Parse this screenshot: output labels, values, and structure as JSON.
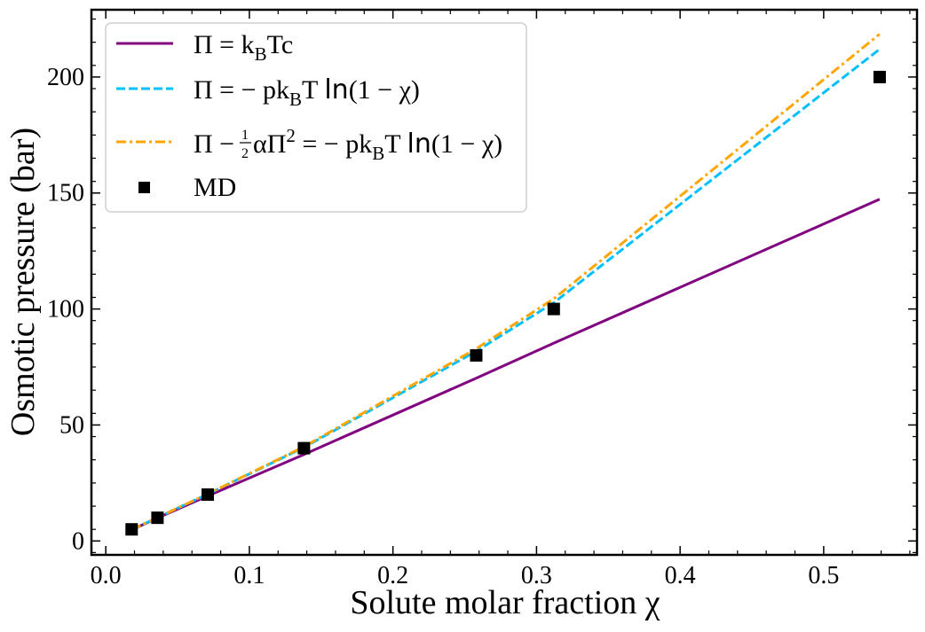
{
  "chart_data": {
    "type": "line",
    "xlabel": "Solute molar fraction χ",
    "ylabel": "Osmotic pressure (bar)",
    "xlim": [
      -0.01,
      0.565
    ],
    "ylim": [
      -6,
      229
    ],
    "xticks": [
      0.0,
      0.1,
      0.2,
      0.3,
      0.4,
      0.5
    ],
    "xtick_labels": [
      "0.0",
      "0.1",
      "0.2",
      "0.3",
      "0.4",
      "0.5"
    ],
    "yticks": [
      0,
      50,
      100,
      150,
      200
    ],
    "ytick_labels": [
      "0",
      "50",
      "100",
      "150",
      "200"
    ],
    "legend_position": "top-left",
    "series": [
      {
        "name": "Π = k_B Tc",
        "kind": "line",
        "style": "solid",
        "color": "#800080",
        "x": [
          0.018,
          0.036,
          0.071,
          0.138,
          0.258,
          0.312,
          0.539
        ],
        "y": [
          4.8,
          9.9,
          19.4,
          37.3,
          70.2,
          85.3,
          147.3
        ]
      },
      {
        "name": "Π = − pk_B T ln(1 − χ)",
        "kind": "line",
        "style": "dashed",
        "color": "#00bfff",
        "x": [
          0.018,
          0.036,
          0.071,
          0.138,
          0.258,
          0.312,
          0.539
        ],
        "y": [
          4.9,
          10.1,
          20.2,
          40.3,
          81.8,
          102.7,
          212.0
        ]
      },
      {
        "name": "Π − ½αΠ² = − pk_B T ln(1 − χ)",
        "kind": "line",
        "style": "dashdot",
        "color": "#ffa500",
        "x": [
          0.018,
          0.036,
          0.071,
          0.138,
          0.258,
          0.312,
          0.539
        ],
        "y": [
          4.9,
          10.1,
          20.3,
          40.6,
          82.9,
          104.4,
          218.5
        ]
      },
      {
        "name": "MD",
        "kind": "scatter",
        "marker": "square",
        "color": "#000000",
        "x": [
          0.018,
          0.036,
          0.071,
          0.138,
          0.258,
          0.312,
          0.539
        ],
        "y": [
          5,
          10,
          20,
          40,
          80,
          100,
          200
        ]
      }
    ]
  }
}
